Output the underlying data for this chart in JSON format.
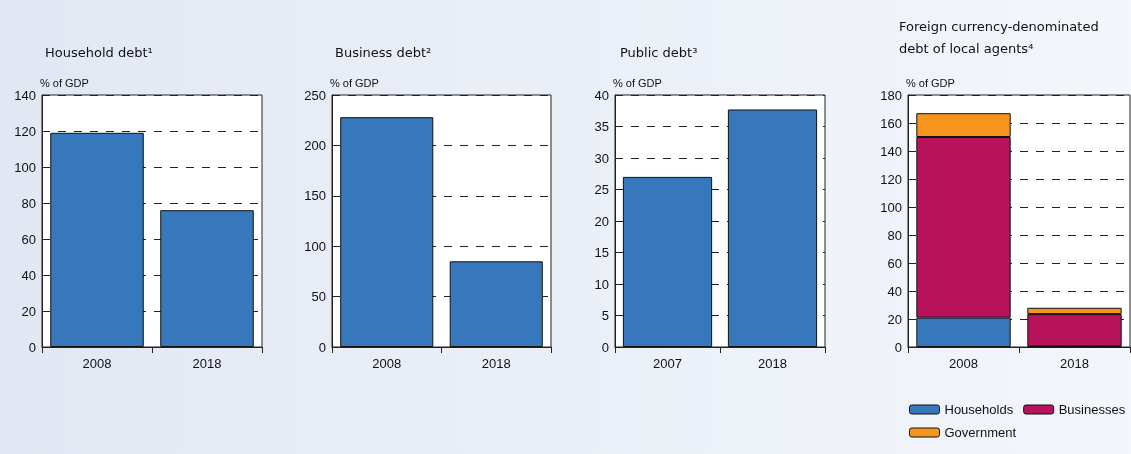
{
  "chart_data": [
    {
      "type": "bar",
      "title": "Household debt¹",
      "ylabel": "% of GDP",
      "categories": [
        "2008",
        "2018"
      ],
      "series": [
        {
          "color": "#3777bb",
          "values": [
            119,
            76
          ]
        }
      ],
      "ylim": [
        0,
        140
      ],
      "yticks": [
        0,
        20,
        40,
        60,
        80,
        100,
        120,
        140
      ],
      "grid": "y",
      "legend": false
    },
    {
      "type": "bar",
      "title": "Business debt²",
      "ylabel": "% of GDP",
      "categories": [
        "2008",
        "2018"
      ],
      "series": [
        {
          "color": "#3777bb",
          "values": [
            228,
            85
          ]
        }
      ],
      "ylim": [
        0,
        250
      ],
      "yticks": [
        0,
        50,
        100,
        150,
        200,
        250
      ],
      "grid": "y",
      "legend": false
    },
    {
      "type": "bar",
      "title": "Public debt³",
      "ylabel": "% of GDP",
      "categories": [
        "2007",
        "2018"
      ],
      "series": [
        {
          "color": "#3777bb",
          "values": [
            27,
            37.7
          ]
        }
      ],
      "ylim": [
        0,
        40
      ],
      "yticks": [
        0,
        5,
        10,
        15,
        20,
        25,
        30,
        35,
        40
      ],
      "grid": "y",
      "legend": false
    },
    {
      "type": "bar",
      "title": "Foreign currency-denominated\ndebt of local agents⁴",
      "ylabel": "% of GDP",
      "categories": [
        "2008",
        "2018"
      ],
      "stacked": true,
      "series": [
        {
          "name": "Households",
          "color": "#3777bb",
          "values": [
            21,
            0.5
          ]
        },
        {
          "name": "Businesses",
          "color": "#b8125a",
          "values": [
            129,
            23
          ]
        },
        {
          "name": "Government",
          "color": "#f7941d",
          "values": [
            17,
            4.5
          ]
        }
      ],
      "ylim": [
        0,
        180
      ],
      "yticks": [
        0,
        20,
        40,
        60,
        80,
        100,
        120,
        140,
        160,
        180
      ],
      "grid": "y",
      "legend": "bottom"
    }
  ]
}
